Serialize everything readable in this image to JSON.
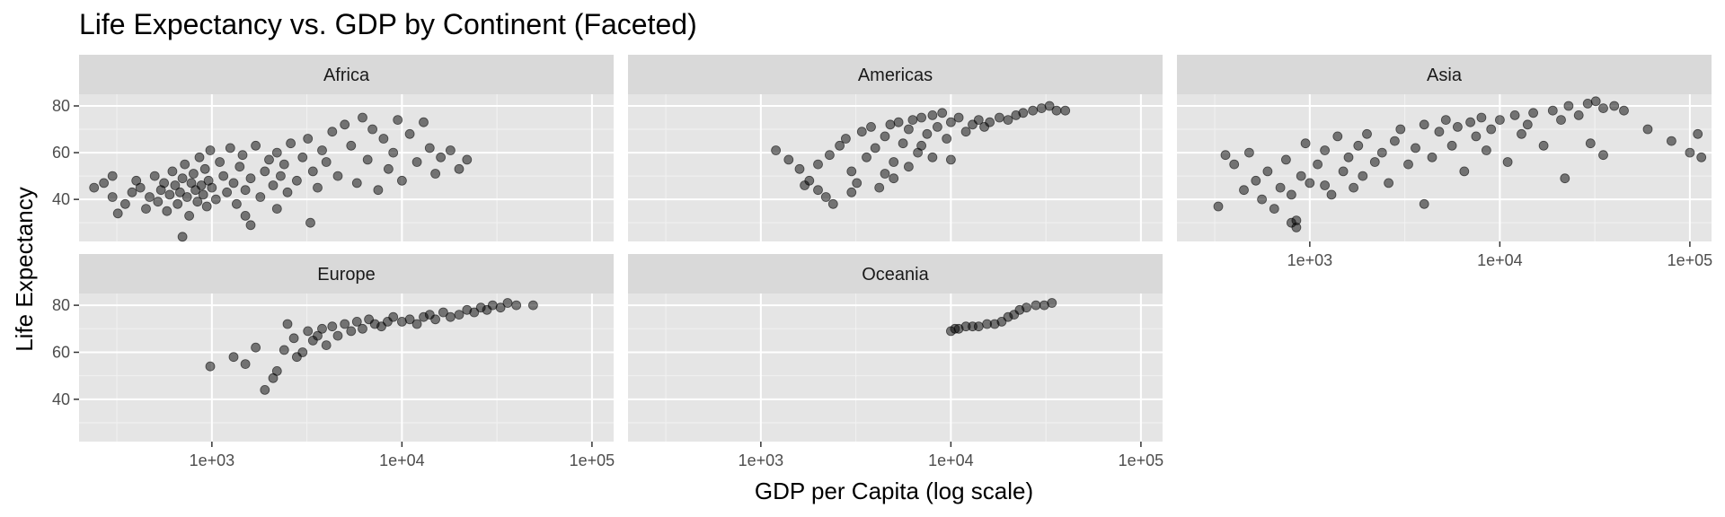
{
  "chart_data": {
    "type": "scatter",
    "title": "Life Expectancy vs. GDP by Continent (Faceted)",
    "xlabel": "GDP per Capita (log scale)",
    "ylabel": "Life Expectancy",
    "x_scale": "log10",
    "xlim": [
      200,
      130000
    ],
    "ylim": [
      22,
      85
    ],
    "x_ticks": [
      1000,
      10000,
      100000
    ],
    "x_tick_labels": [
      "1e+03",
      "1e+04",
      "1e+05"
    ],
    "y_ticks": [
      40,
      60,
      80
    ],
    "y_tick_labels": [
      "40",
      "60",
      "80"
    ],
    "grid": true,
    "legend": "none",
    "point_color": "#000000",
    "point_alpha": 0.5,
    "panel_background": "#e5e5e5",
    "strip_background": "#d9d9d9",
    "facets": [
      {
        "name": "Africa",
        "points": [
          [
            240,
            45
          ],
          [
            270,
            47
          ],
          [
            300,
            41
          ],
          [
            320,
            34
          ],
          [
            350,
            38
          ],
          [
            380,
            43
          ],
          [
            400,
            48
          ],
          [
            420,
            45
          ],
          [
            450,
            36
          ],
          [
            470,
            41
          ],
          [
            500,
            50
          ],
          [
            520,
            39
          ],
          [
            540,
            44
          ],
          [
            560,
            47
          ],
          [
            580,
            35
          ],
          [
            600,
            42
          ],
          [
            620,
            52
          ],
          [
            640,
            46
          ],
          [
            660,
            38
          ],
          [
            680,
            43
          ],
          [
            700,
            49
          ],
          [
            720,
            55
          ],
          [
            740,
            41
          ],
          [
            760,
            33
          ],
          [
            780,
            47
          ],
          [
            800,
            51
          ],
          [
            820,
            44
          ],
          [
            840,
            39
          ],
          [
            860,
            58
          ],
          [
            880,
            46
          ],
          [
            900,
            42
          ],
          [
            920,
            53
          ],
          [
            940,
            37
          ],
          [
            960,
            48
          ],
          [
            980,
            61
          ],
          [
            1000,
            45
          ],
          [
            1050,
            40
          ],
          [
            1100,
            56
          ],
          [
            1150,
            50
          ],
          [
            1200,
            43
          ],
          [
            1250,
            62
          ],
          [
            1300,
            47
          ],
          [
            1350,
            38
          ],
          [
            1400,
            54
          ],
          [
            1450,
            59
          ],
          [
            1500,
            44
          ],
          [
            1600,
            49
          ],
          [
            1700,
            63
          ],
          [
            1800,
            41
          ],
          [
            1900,
            52
          ],
          [
            2000,
            57
          ],
          [
            2100,
            46
          ],
          [
            2200,
            60
          ],
          [
            2300,
            50
          ],
          [
            2400,
            55
          ],
          [
            2500,
            43
          ],
          [
            2600,
            64
          ],
          [
            2800,
            48
          ],
          [
            3000,
            58
          ],
          [
            3200,
            66
          ],
          [
            3400,
            52
          ],
          [
            3600,
            45
          ],
          [
            3800,
            61
          ],
          [
            4000,
            56
          ],
          [
            4300,
            69
          ],
          [
            4600,
            50
          ],
          [
            5000,
            72
          ],
          [
            5400,
            63
          ],
          [
            5800,
            47
          ],
          [
            6200,
            75
          ],
          [
            6600,
            57
          ],
          [
            7000,
            70
          ],
          [
            7500,
            44
          ],
          [
            8000,
            66
          ],
          [
            8500,
            53
          ],
          [
            9000,
            60
          ],
          [
            9500,
            74
          ],
          [
            10000,
            48
          ],
          [
            11000,
            68
          ],
          [
            12000,
            56
          ],
          [
            13000,
            73
          ],
          [
            14000,
            62
          ],
          [
            15000,
            51
          ],
          [
            16000,
            58
          ],
          [
            18000,
            61
          ],
          [
            20000,
            53
          ],
          [
            22000,
            57
          ],
          [
            3300,
            30
          ],
          [
            2200,
            36
          ],
          [
            1500,
            33
          ],
          [
            700,
            24
          ],
          [
            1600,
            29
          ],
          [
            300,
            50
          ]
        ]
      },
      {
        "name": "Americas",
        "points": [
          [
            1200,
            61
          ],
          [
            1400,
            57
          ],
          [
            1600,
            53
          ],
          [
            1800,
            48
          ],
          [
            1700,
            46
          ],
          [
            2000,
            44
          ],
          [
            2200,
            41
          ],
          [
            2400,
            38
          ],
          [
            2000,
            55
          ],
          [
            2300,
            59
          ],
          [
            2600,
            63
          ],
          [
            2800,
            66
          ],
          [
            3000,
            52
          ],
          [
            3200,
            47
          ],
          [
            3400,
            69
          ],
          [
            3600,
            58
          ],
          [
            3800,
            71
          ],
          [
            4000,
            62
          ],
          [
            4200,
            45
          ],
          [
            4500,
            67
          ],
          [
            4800,
            72
          ],
          [
            5000,
            56
          ],
          [
            5300,
            73
          ],
          [
            5600,
            64
          ],
          [
            6000,
            70
          ],
          [
            6300,
            74
          ],
          [
            6700,
            60
          ],
          [
            7000,
            75
          ],
          [
            7500,
            68
          ],
          [
            8000,
            76
          ],
          [
            8500,
            71
          ],
          [
            9000,
            77
          ],
          [
            9500,
            66
          ],
          [
            10000,
            73
          ],
          [
            11000,
            75
          ],
          [
            12000,
            69
          ],
          [
            13000,
            72
          ],
          [
            14000,
            74
          ],
          [
            15000,
            71
          ],
          [
            16000,
            73
          ],
          [
            18000,
            75
          ],
          [
            20000,
            74
          ],
          [
            22000,
            76
          ],
          [
            24000,
            77
          ],
          [
            27000,
            78
          ],
          [
            30000,
            79
          ],
          [
            33000,
            80
          ],
          [
            36000,
            78
          ],
          [
            40000,
            78
          ],
          [
            5000,
            49
          ],
          [
            6000,
            54
          ],
          [
            8000,
            58
          ],
          [
            7000,
            63
          ],
          [
            10000,
            57
          ],
          [
            4500,
            51
          ],
          [
            3000,
            43
          ]
        ]
      },
      {
        "name": "Asia",
        "points": [
          [
            330,
            37
          ],
          [
            360,
            59
          ],
          [
            400,
            55
          ],
          [
            450,
            44
          ],
          [
            480,
            60
          ],
          [
            520,
            48
          ],
          [
            560,
            40
          ],
          [
            600,
            52
          ],
          [
            650,
            36
          ],
          [
            700,
            45
          ],
          [
            750,
            57
          ],
          [
            800,
            42
          ],
          [
            850,
            31
          ],
          [
            900,
            50
          ],
          [
            950,
            64
          ],
          [
            1000,
            47
          ],
          [
            1100,
            55
          ],
          [
            1200,
            61
          ],
          [
            1300,
            42
          ],
          [
            1400,
            67
          ],
          [
            1500,
            52
          ],
          [
            1600,
            58
          ],
          [
            1700,
            45
          ],
          [
            1800,
            63
          ],
          [
            1900,
            50
          ],
          [
            2000,
            68
          ],
          [
            2200,
            56
          ],
          [
            2400,
            60
          ],
          [
            2600,
            47
          ],
          [
            2800,
            65
          ],
          [
            3000,
            70
          ],
          [
            3300,
            55
          ],
          [
            3600,
            62
          ],
          [
            4000,
            72
          ],
          [
            4400,
            58
          ],
          [
            4800,
            69
          ],
          [
            5200,
            74
          ],
          [
            5600,
            63
          ],
          [
            6000,
            71
          ],
          [
            6500,
            52
          ],
          [
            7000,
            73
          ],
          [
            7500,
            67
          ],
          [
            8000,
            75
          ],
          [
            8500,
            61
          ],
          [
            9000,
            70
          ],
          [
            10000,
            74
          ],
          [
            11000,
            56
          ],
          [
            12000,
            76
          ],
          [
            13000,
            68
          ],
          [
            14000,
            72
          ],
          [
            15000,
            77
          ],
          [
            17000,
            63
          ],
          [
            19000,
            78
          ],
          [
            21000,
            74
          ],
          [
            23000,
            80
          ],
          [
            26000,
            76
          ],
          [
            29000,
            81
          ],
          [
            32000,
            82
          ],
          [
            35000,
            79
          ],
          [
            40000,
            80
          ],
          [
            45000,
            78
          ],
          [
            60000,
            70
          ],
          [
            80000,
            65
          ],
          [
            100000,
            60
          ],
          [
            110000,
            68
          ],
          [
            115000,
            58
          ],
          [
            35000,
            59
          ],
          [
            30000,
            64
          ],
          [
            22000,
            49
          ],
          [
            4000,
            38
          ],
          [
            1200,
            46
          ],
          [
            850,
            28
          ],
          [
            800,
            30
          ]
        ]
      },
      {
        "name": "Europe",
        "points": [
          [
            980,
            54
          ],
          [
            1300,
            58
          ],
          [
            1500,
            55
          ],
          [
            1700,
            62
          ],
          [
            1900,
            44
          ],
          [
            2100,
            49
          ],
          [
            2200,
            52
          ],
          [
            2400,
            61
          ],
          [
            2500,
            72
          ],
          [
            2700,
            66
          ],
          [
            2800,
            58
          ],
          [
            3000,
            60
          ],
          [
            3200,
            69
          ],
          [
            3400,
            65
          ],
          [
            3600,
            67
          ],
          [
            3800,
            70
          ],
          [
            4000,
            63
          ],
          [
            4300,
            71
          ],
          [
            4600,
            67
          ],
          [
            5000,
            72
          ],
          [
            5400,
            69
          ],
          [
            5800,
            73
          ],
          [
            6200,
            70
          ],
          [
            6700,
            74
          ],
          [
            7200,
            72
          ],
          [
            7800,
            71
          ],
          [
            8400,
            73
          ],
          [
            9000,
            75
          ],
          [
            10000,
            73
          ],
          [
            11000,
            74
          ],
          [
            12000,
            72
          ],
          [
            13000,
            75
          ],
          [
            14000,
            76
          ],
          [
            15000,
            74
          ],
          [
            16500,
            77
          ],
          [
            18000,
            75
          ],
          [
            20000,
            76
          ],
          [
            22000,
            78
          ],
          [
            24000,
            77
          ],
          [
            26000,
            79
          ],
          [
            28000,
            78
          ],
          [
            30000,
            80
          ],
          [
            33000,
            79
          ],
          [
            36000,
            81
          ],
          [
            40000,
            80
          ],
          [
            49000,
            80
          ]
        ]
      },
      {
        "name": "Oceania",
        "points": [
          [
            10000,
            69
          ],
          [
            10500,
            70
          ],
          [
            11000,
            70
          ],
          [
            12000,
            71
          ],
          [
            13000,
            71
          ],
          [
            14000,
            71
          ],
          [
            15500,
            72
          ],
          [
            17000,
            72
          ],
          [
            18500,
            73
          ],
          [
            20000,
            75
          ],
          [
            21500,
            76
          ],
          [
            23000,
            78
          ],
          [
            25000,
            79
          ],
          [
            28000,
            80
          ],
          [
            31000,
            80
          ],
          [
            34000,
            81
          ]
        ]
      }
    ]
  }
}
